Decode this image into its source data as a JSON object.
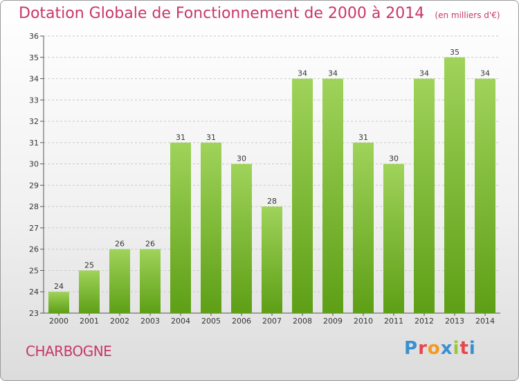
{
  "title": "Dotation Globale de Fonctionnement de 2000 à 2014",
  "subtitle": "(en milliers d'€)",
  "commune": "CHARBOGNE",
  "logo": {
    "letters": [
      "P",
      "r",
      "o",
      "x",
      "i",
      "t",
      "i"
    ],
    "colors": [
      "#3a8fd1",
      "#e5474b",
      "#f39a1e",
      "#3a8fd1",
      "#9bc53d",
      "#e5474b",
      "#3a8fd1"
    ]
  },
  "colors": {
    "title": "#c8366b",
    "bar_light": "#9fd35a",
    "bar_dark": "#5e9f16"
  },
  "chart_data": {
    "type": "bar",
    "categories": [
      "2000",
      "2001",
      "2002",
      "2003",
      "2004",
      "2005",
      "2006",
      "2007",
      "2008",
      "2009",
      "2010",
      "2011",
      "2012",
      "2013",
      "2014"
    ],
    "values": [
      24,
      25,
      26,
      26,
      31,
      31,
      30,
      28,
      34,
      34,
      31,
      30,
      34,
      35,
      34
    ],
    "title": "Dotation Globale de Fonctionnement de 2000 à 2014",
    "ylim": [
      23,
      36
    ],
    "yticks": [
      23,
      24,
      25,
      26,
      27,
      28,
      29,
      30,
      31,
      32,
      33,
      34,
      35,
      36
    ],
    "grid": true,
    "legend": "none"
  }
}
